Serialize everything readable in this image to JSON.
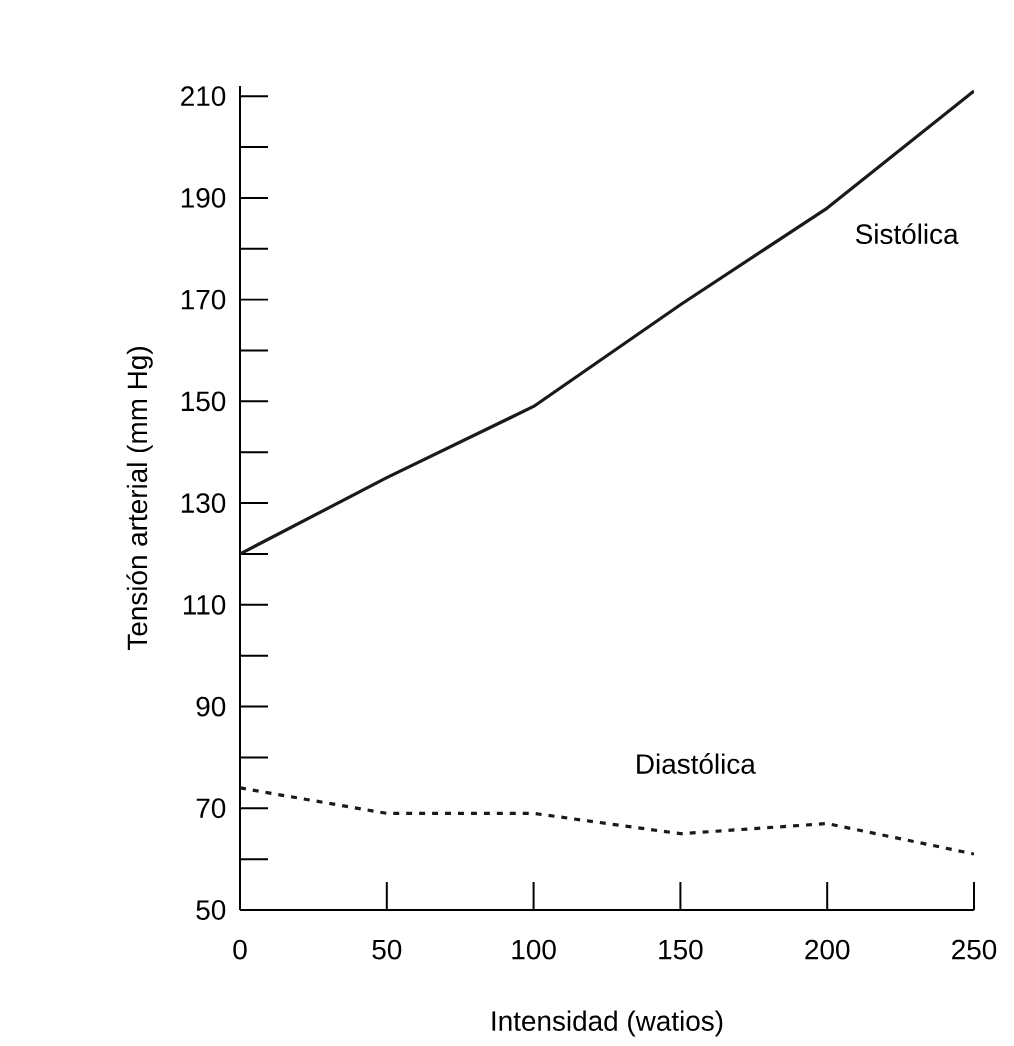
{
  "chart_data": {
    "type": "line",
    "xlabel": "Intensidad (watios)",
    "ylabel": "Tensión arterial (mm Hg)",
    "x": [
      0,
      50,
      100,
      150,
      200,
      250
    ],
    "series": [
      {
        "name": "Sistólica",
        "color": "#1a1a1a",
        "line_style": "solid",
        "values": [
          120,
          135,
          149,
          169,
          188,
          211
        ]
      },
      {
        "name": "Diastólica",
        "color": "#1a1a1a",
        "line_style": "dotted",
        "values": [
          74,
          69,
          69,
          65,
          67,
          61
        ]
      }
    ],
    "xlim": [
      0,
      250
    ],
    "ylim": [
      50,
      212
    ],
    "xticks": [
      0,
      50,
      100,
      150,
      200,
      250
    ],
    "yticks": [
      50,
      {
        "value": 60,
        "label": null
      },
      70,
      {
        "value": 80,
        "label": null
      },
      90,
      {
        "value": 100,
        "label": null
      },
      110,
      {
        "value": 120,
        "label": null
      },
      130,
      {
        "value": 140,
        "label": null
      },
      150,
      {
        "value": 160,
        "label": null
      },
      170,
      {
        "value": 180,
        "label": null
      },
      190,
      {
        "value": 200,
        "label": null
      },
      210
    ],
    "grid": false,
    "legend": false,
    "marker": "none"
  }
}
